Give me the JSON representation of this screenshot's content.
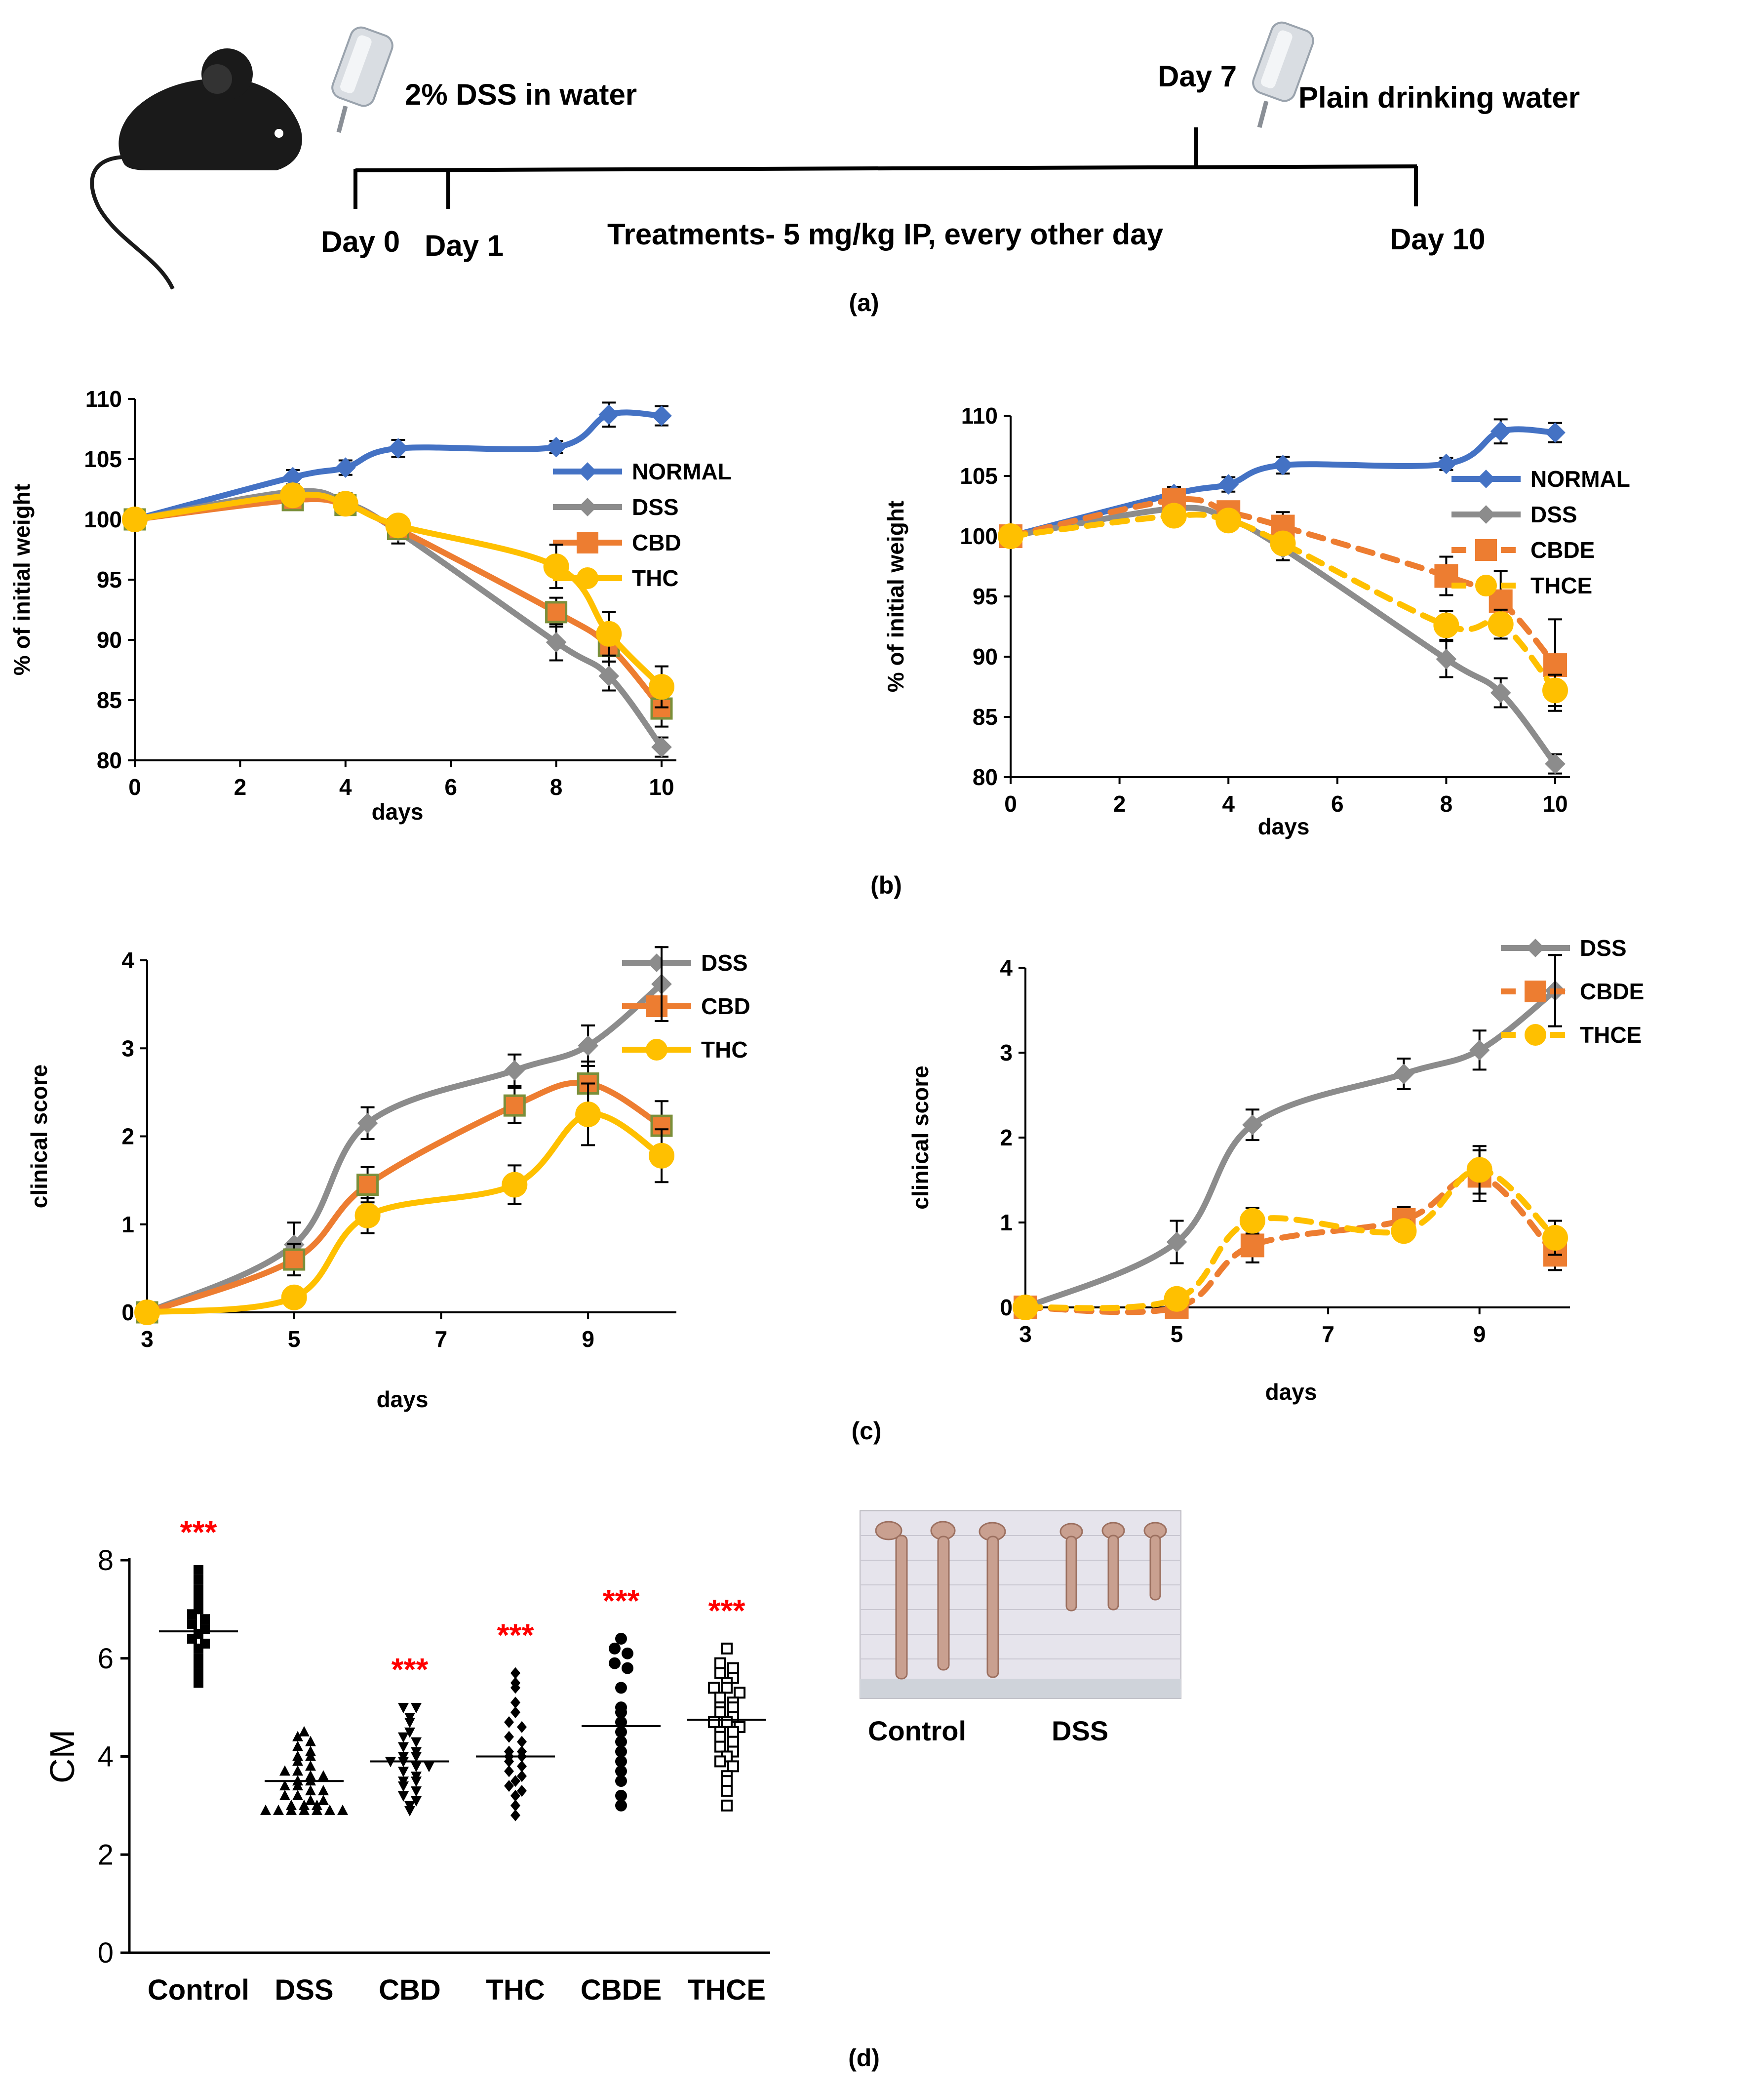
{
  "timeline": {
    "dss_label": "2% DSS in water",
    "plain_label": "Plain drinking water",
    "day7": "Day 7",
    "day0": "Day 0",
    "day1": "Day 1",
    "day10": "Day 10",
    "treatment": "Treatments- 5 mg/kg IP, every other day"
  },
  "panel_labels": {
    "a": "(a)",
    "b": "(b)",
    "c": "(c)",
    "d": "(d)"
  },
  "photo": {
    "label_left": "Control",
    "label_right": "DSS"
  },
  "colors": {
    "normal": "#4472c4",
    "dss": "#8c8c8c",
    "cbd": "#ed7d31",
    "thc": "#ffc000",
    "stars": "#ff0000"
  },
  "chart_data": [
    {
      "type": "line",
      "id": "b1",
      "xlabel": "days",
      "ylabel": "% of initial weight",
      "xlim": [
        0,
        10
      ],
      "ylim": [
        80,
        110
      ],
      "xticks": [
        0,
        2,
        4,
        6,
        8,
        10
      ],
      "yticks": [
        80,
        85,
        90,
        95,
        100,
        105,
        110
      ],
      "legend_position": "right",
      "series": [
        {
          "name": "NORMAL",
          "color": "#4472c4",
          "marker": "diamond",
          "dashed": false,
          "x": [
            0,
            3,
            4,
            5,
            8,
            9,
            10
          ],
          "y": [
            100,
            103.5,
            104.3,
            105.9,
            106,
            108.7,
            108.6
          ],
          "err": [
            0,
            0.6,
            0.6,
            0.7,
            0.5,
            1,
            0.8
          ]
        },
        {
          "name": "DSS",
          "color": "#8c8c8c",
          "marker": "diamond",
          "dashed": false,
          "x": [
            0,
            3,
            4,
            5,
            8,
            9,
            10
          ],
          "y": [
            100,
            102.3,
            101.4,
            99,
            89.8,
            87,
            81.1
          ],
          "err": [
            0,
            0.5,
            0.8,
            1,
            1.5,
            1.2,
            0.8
          ]
        },
        {
          "name": "CBD",
          "color": "#ed7d31",
          "marker": "square",
          "dashed": false,
          "x": [
            0,
            3,
            4,
            5,
            8,
            9,
            10
          ],
          "y": [
            100,
            101.6,
            101.2,
            99.2,
            92.3,
            89.5,
            84.3
          ],
          "err": [
            0,
            0.5,
            0.6,
            0.8,
            1.2,
            1.3,
            1.5
          ]
        },
        {
          "name": "THC",
          "color": "#ffc000",
          "marker": "circle",
          "dashed": false,
          "x": [
            0,
            3,
            4,
            5,
            8,
            9,
            10
          ],
          "y": [
            100,
            102,
            101.3,
            99.5,
            96.1,
            90.5,
            86.1
          ],
          "err": [
            0,
            0.5,
            0.6,
            0.7,
            1.8,
            1.8,
            1.7
          ]
        }
      ]
    },
    {
      "type": "line",
      "id": "b2",
      "xlabel": "days",
      "ylabel": "% of initial weight",
      "xlim": [
        0,
        10
      ],
      "ylim": [
        80,
        110
      ],
      "xticks": [
        0,
        2,
        4,
        6,
        8,
        10
      ],
      "yticks": [
        80,
        85,
        90,
        95,
        100,
        105,
        110
      ],
      "legend_position": "right",
      "series": [
        {
          "name": "NORMAL",
          "color": "#4472c4",
          "marker": "diamond",
          "dashed": false,
          "x": [
            0,
            3,
            4,
            5,
            8,
            9,
            10
          ],
          "y": [
            100,
            103.5,
            104.3,
            105.9,
            106,
            108.7,
            108.6
          ],
          "err": [
            0,
            0.6,
            0.6,
            0.7,
            0.5,
            1,
            0.8
          ]
        },
        {
          "name": "DSS",
          "color": "#8c8c8c",
          "marker": "diamond",
          "dashed": false,
          "x": [
            0,
            3,
            4,
            5,
            8,
            9,
            10
          ],
          "y": [
            100,
            102.3,
            101.4,
            99,
            89.8,
            87,
            81.1
          ],
          "err": [
            0,
            0.5,
            0.8,
            1,
            1.5,
            1.2,
            0.8
          ]
        },
        {
          "name": "CBDE",
          "color": "#ed7d31",
          "marker": "square",
          "dashed": true,
          "x": [
            0,
            3,
            4,
            5,
            8,
            9,
            10
          ],
          "y": [
            100,
            103,
            102,
            100.8,
            96.7,
            94.6,
            89.3
          ],
          "err": [
            0,
            0.6,
            0.8,
            1.2,
            1.6,
            2.5,
            3.8
          ]
        },
        {
          "name": "THCE",
          "color": "#ffc000",
          "marker": "circle",
          "dashed": true,
          "x": [
            0,
            3,
            4,
            5,
            8,
            9,
            10
          ],
          "y": [
            100,
            101.7,
            101.3,
            99.4,
            92.6,
            92.7,
            87.2
          ],
          "err": [
            0,
            0.5,
            0.6,
            0.8,
            1.2,
            1.2,
            1.3
          ]
        }
      ]
    },
    {
      "type": "line",
      "id": "c1",
      "xlabel": "days",
      "ylabel": "clinical score",
      "xlim": [
        3,
        10
      ],
      "ylim": [
        0,
        4
      ],
      "xticks": [
        3,
        5,
        7,
        9
      ],
      "yticks": [
        0,
        1,
        2,
        3,
        4
      ],
      "legend_position": "right",
      "series": [
        {
          "name": "DSS",
          "color": "#8c8c8c",
          "marker": "diamond",
          "dashed": false,
          "x": [
            3,
            5,
            6,
            8,
            9,
            10
          ],
          "y": [
            0,
            0.77,
            2.15,
            2.75,
            3.03,
            3.73
          ],
          "err": [
            0,
            0.25,
            0.18,
            0.18,
            0.23,
            0.42
          ]
        },
        {
          "name": "CBD",
          "color": "#ed7d31",
          "marker": "square",
          "dashed": false,
          "x": [
            3,
            5,
            6,
            8,
            9,
            10
          ],
          "y": [
            0,
            0.6,
            1.45,
            2.35,
            2.6,
            2.12
          ],
          "err": [
            0,
            0.18,
            0.2,
            0.2,
            0.25,
            0.28
          ]
        },
        {
          "name": "THC",
          "color": "#ffc000",
          "marker": "circle",
          "dashed": false,
          "x": [
            3,
            5,
            6,
            8,
            9,
            10
          ],
          "y": [
            0,
            0.17,
            1.1,
            1.45,
            2.25,
            1.78
          ],
          "err": [
            0,
            0.1,
            0.2,
            0.22,
            0.35,
            0.3
          ]
        }
      ]
    },
    {
      "type": "line",
      "id": "c2",
      "xlabel": "days",
      "ylabel": "clinical score",
      "xlim": [
        3,
        10
      ],
      "ylim": [
        0,
        4
      ],
      "xticks": [
        3,
        5,
        7,
        9
      ],
      "yticks": [
        0,
        1,
        2,
        3,
        4
      ],
      "legend_position": "right",
      "series": [
        {
          "name": "DSS",
          "color": "#8c8c8c",
          "marker": "diamond",
          "dashed": false,
          "x": [
            3,
            5,
            6,
            8,
            9,
            10
          ],
          "y": [
            0,
            0.77,
            2.15,
            2.75,
            3.03,
            3.73
          ],
          "err": [
            0,
            0.25,
            0.18,
            0.18,
            0.23,
            0.42
          ]
        },
        {
          "name": "CBDE",
          "color": "#ed7d31",
          "marker": "square",
          "dashed": true,
          "x": [
            3,
            5,
            6,
            8,
            9,
            10
          ],
          "y": [
            0,
            0,
            0.73,
            1.03,
            1.55,
            0.62
          ],
          "err": [
            0,
            0,
            0.2,
            0.15,
            0.3,
            0.18
          ]
        },
        {
          "name": "THCE",
          "color": "#ffc000",
          "marker": "circle",
          "dashed": true,
          "x": [
            3,
            5,
            6,
            8,
            9,
            10
          ],
          "y": [
            0,
            0.1,
            1.02,
            0.9,
            1.62,
            0.82
          ],
          "err": [
            0,
            0.1,
            0.15,
            0.12,
            0.28,
            0.2
          ]
        }
      ]
    },
    {
      "type": "scatter",
      "id": "d",
      "ylabel": "CM",
      "ylim": [
        0,
        8
      ],
      "yticks": [
        0,
        2,
        4,
        6,
        8
      ],
      "significance": "***",
      "groups": [
        {
          "name": "Control",
          "marker": "square-filled",
          "mean": 6.55,
          "stars": true,
          "values": [
            7.8,
            7.6,
            7.4,
            7.2,
            7.0,
            6.9,
            6.8,
            6.7,
            6.6,
            6.5,
            6.4,
            6.3,
            6.2,
            6.0,
            5.9,
            5.7,
            5.5
          ]
        },
        {
          "name": "DSS",
          "marker": "triangle-up",
          "mean": 3.5,
          "stars": false,
          "values": [
            4.5,
            4.4,
            4.3,
            4.2,
            4.1,
            4.0,
            4.0,
            3.9,
            3.8,
            3.7,
            3.7,
            3.6,
            3.6,
            3.5,
            3.5,
            3.4,
            3.4,
            3.3,
            3.3,
            3.2,
            3.2,
            3.1,
            3.1,
            3.0,
            3.0,
            3.0,
            2.9,
            2.9,
            2.9,
            2.9,
            2.9,
            2.9,
            2.9
          ]
        },
        {
          "name": "CBD",
          "marker": "triangle-down",
          "mean": 3.9,
          "stars": true,
          "values": [
            5.0,
            5.0,
            4.8,
            4.7,
            4.5,
            4.4,
            4.3,
            4.2,
            4.1,
            4.0,
            4.0,
            3.9,
            3.9,
            3.8,
            3.8,
            3.7,
            3.6,
            3.5,
            3.5,
            3.4,
            3.3,
            3.2,
            3.1,
            3.0,
            2.9
          ]
        },
        {
          "name": "THC",
          "marker": "diamond",
          "mean": 4.0,
          "stars": true,
          "values": [
            5.7,
            5.5,
            5.4,
            5.1,
            4.9,
            4.7,
            4.6,
            4.4,
            4.3,
            4.1,
            4.1,
            4.0,
            4.0,
            3.9,
            3.8,
            3.7,
            3.6,
            3.5,
            3.4,
            3.3,
            3.2,
            3.0,
            2.8
          ]
        },
        {
          "name": "CBDE",
          "marker": "circle",
          "mean": 4.62,
          "stars": true,
          "values": [
            6.4,
            6.2,
            6.1,
            5.9,
            5.8,
            5.4,
            5.0,
            4.9,
            4.7,
            4.5,
            4.3,
            4.1,
            3.9,
            3.7,
            3.5,
            3.2,
            3.0
          ]
        },
        {
          "name": "THCE",
          "marker": "square-open",
          "mean": 4.75,
          "stars": true,
          "values": [
            6.2,
            5.9,
            5.8,
            5.7,
            5.6,
            5.5,
            5.4,
            5.4,
            5.3,
            5.2,
            5.1,
            5.0,
            5.0,
            4.9,
            4.8,
            4.7,
            4.7,
            4.6,
            4.5,
            4.5,
            4.4,
            4.3,
            4.2,
            4.1,
            4.0,
            3.9,
            3.8,
            3.6,
            3.5,
            3.3,
            3.0
          ]
        }
      ]
    }
  ]
}
